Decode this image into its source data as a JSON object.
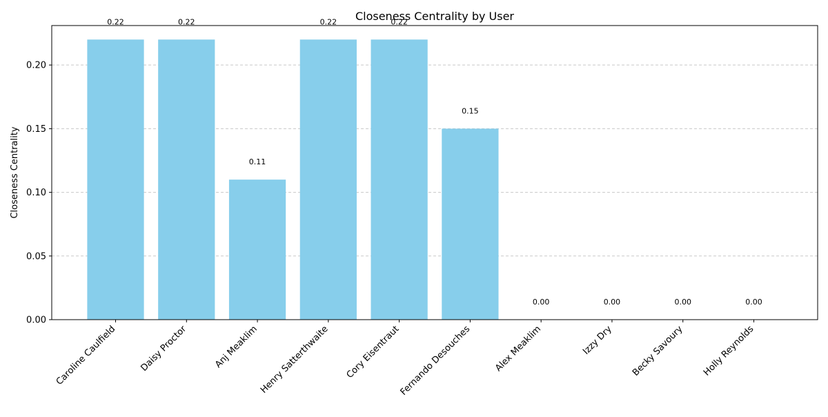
{
  "chart_data": {
    "type": "bar",
    "title": "Closeness Centrality by User",
    "xlabel": "",
    "ylabel": "Closeness Centrality",
    "categories": [
      "Caroline Caulfield",
      "Daisy Proctor",
      "Anj Meaklim",
      "Henry Satterthwaite",
      "Cory Eisentraut",
      "Fernando Desouches",
      "Alex Meaklim",
      "Izzy Dry",
      "Becky Savoury",
      "Holly Reynolds"
    ],
    "values": [
      0.22,
      0.22,
      0.11,
      0.22,
      0.22,
      0.15,
      0.0,
      0.0,
      0.0,
      0.0
    ],
    "data_labels": [
      "0.22",
      "0.22",
      "0.11",
      "0.22",
      "0.22",
      "0.15",
      "0.00",
      "0.00",
      "0.00",
      "0.00"
    ],
    "ylim": [
      0,
      0.231
    ],
    "yticks": [
      0.0,
      0.05,
      0.1,
      0.15,
      0.2
    ],
    "ytick_labels": [
      "0.00",
      "0.05",
      "0.10",
      "0.15",
      "0.20"
    ],
    "grid": "y-dashed",
    "bar_color": "#87ceeb",
    "legend": "none"
  }
}
